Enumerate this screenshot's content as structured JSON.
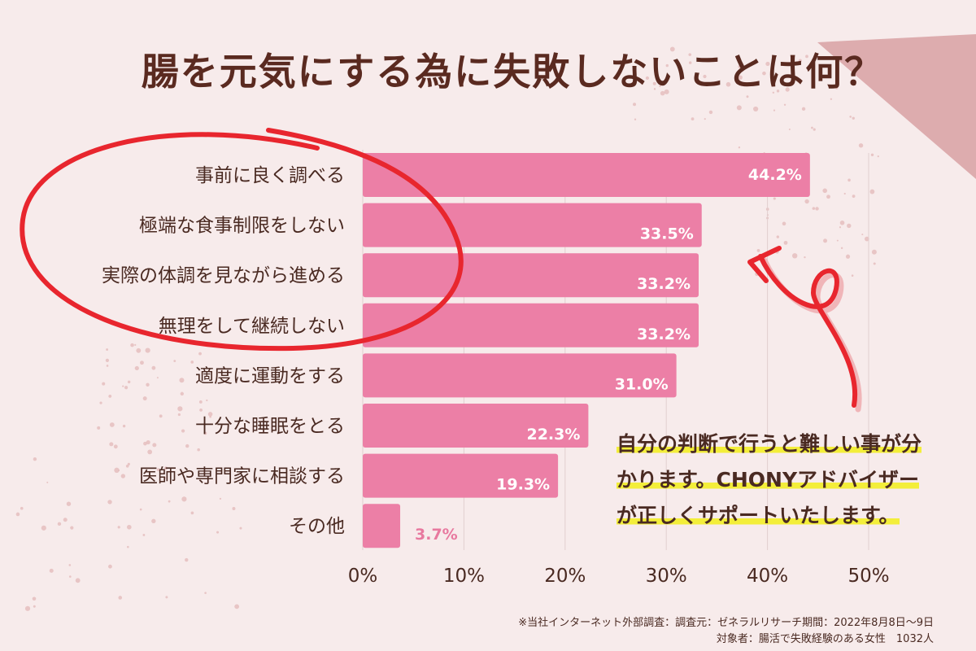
{
  "title": "腸を元気にする為に失敗しないことは何？",
  "chart_data": {
    "type": "bar",
    "orientation": "horizontal",
    "categories": [
      "事前に良く調べる",
      "極端な食事制限をしない",
      "実際の体調を見ながら進める",
      "無理をして継続しない",
      "適度に運動をする",
      "十分な睡眠をとる",
      "医師や専門家に相談する",
      "その他"
    ],
    "values": [
      44.2,
      33.5,
      33.2,
      33.2,
      31.0,
      22.3,
      19.3,
      3.7
    ],
    "value_labels": [
      "44.2%",
      "33.5%",
      "33.2%",
      "33.2%",
      "31.0%",
      "22.3%",
      "19.3%",
      "3.7%"
    ],
    "xlim": [
      0,
      50
    ],
    "ticks": [
      0,
      10,
      20,
      30,
      40,
      50
    ],
    "tick_labels": [
      "0%",
      "10%",
      "20%",
      "30%",
      "40%",
      "50%"
    ],
    "grid": true,
    "bar_color": "#ec7fa6",
    "highlight_color": "#e8262e"
  },
  "callout": {
    "lines": [
      "自分の判断で行うと難しい事が分",
      "かります。CHONYアドバイザー",
      "が正しくサポートいたします。"
    ]
  },
  "footnote": {
    "line1": "※当社インターネット外部調査：調査元：ゼネラルリサーチ期間：2022年8月8日～9日",
    "line2": "対象者：腸活で失敗経験のある女性　1032人"
  },
  "colors": {
    "background": "#f7ebeb",
    "corner": "#ddacae",
    "text": "#4a2a22",
    "marker": "#f3ee3a"
  }
}
